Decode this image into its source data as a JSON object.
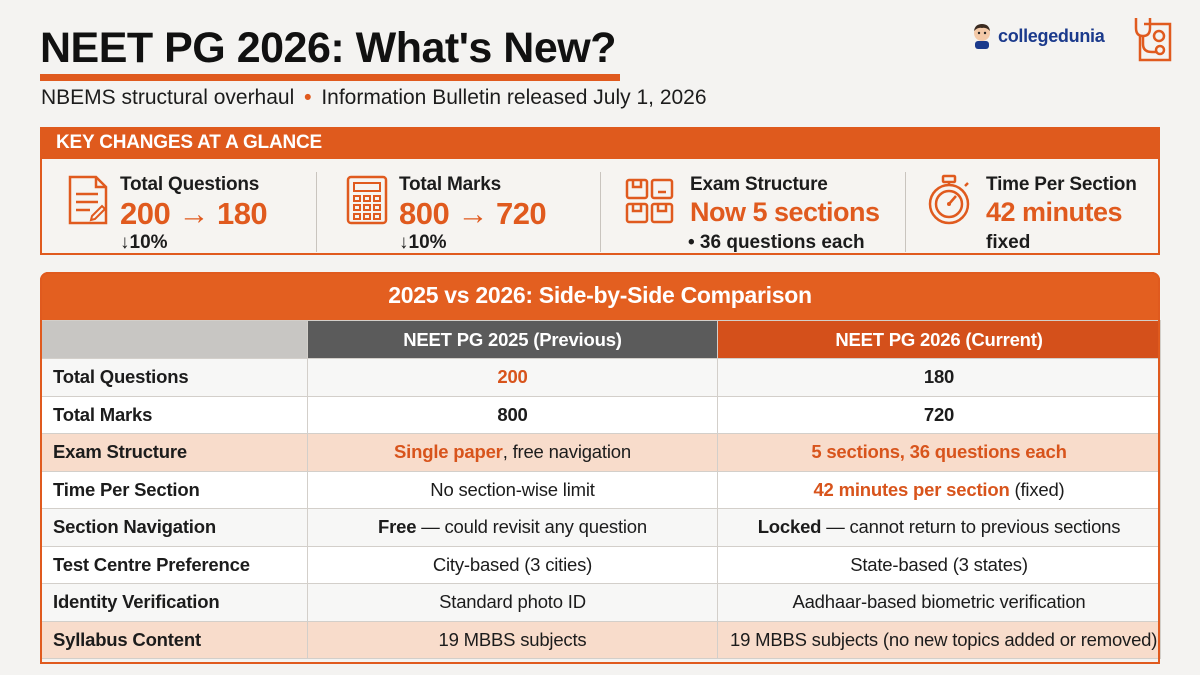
{
  "header": {
    "title": "NEET PG 2026: What's New?",
    "subtitle_part1": "NBEMS structural overhaul",
    "subtitle_sep": "•",
    "subtitle_part2": "Information Bulletin released July 1, 2026"
  },
  "logo": {
    "text": "collegedunia"
  },
  "key_changes": {
    "heading": "KEY CHANGES AT A GLANCE",
    "cards": [
      {
        "label": "Total Questions",
        "value": "200 → 180",
        "note": "↓10%",
        "icon": "document-icon"
      },
      {
        "label": "Total Marks",
        "value": "800 → 720",
        "note": "↓10%",
        "icon": "calculator-icon"
      },
      {
        "label": "Exam Structure",
        "value": "Now 5 sections",
        "note": "• 36 questions each",
        "icon": "sections-icon"
      },
      {
        "label": "Time Per Section",
        "value": "42 minutes",
        "note": "fixed",
        "icon": "stopwatch-icon"
      }
    ]
  },
  "comparison": {
    "heading": "2025 vs 2026: Side-by-Side Comparison",
    "col_prev": "NEET PG 2025 (Previous)",
    "col_curr": "NEET PG 2026 (Current)",
    "rows": [
      {
        "label": "Total Questions",
        "prev": "200",
        "curr": "180"
      },
      {
        "label": "Total Marks",
        "prev": "800",
        "curr": "720"
      },
      {
        "label": "Exam Structure",
        "prev_bold": "Single paper",
        "prev_rest": ", free navigation",
        "curr": "5 sections, 36 questions each"
      },
      {
        "label": "Time Per Section",
        "prev": "No section-wise limit",
        "curr_bold": "42 minutes per section",
        "curr_rest": " (fixed)"
      },
      {
        "label": "Section Navigation",
        "prev_bold": "Free",
        "prev_rest": " — could revisit any question",
        "curr_bold": "Locked",
        "curr_rest": " — cannot return to previous sections"
      },
      {
        "label": "Test Centre Preference",
        "prev": "City-based (3 cities)",
        "curr": "State-based (3 states)"
      },
      {
        "label": "Identity Verification",
        "prev": "Standard photo ID",
        "curr": "Aadhaar-based biometric verification"
      },
      {
        "label": "Syllabus Content",
        "prev": "19 MBBS subjects",
        "curr": "19 MBBS subjects (no new topics added or removed)"
      }
    ]
  },
  "colors": {
    "accent": "#e05a1e",
    "dark_header": "#5b5b5b",
    "highlight_row": "#f8dccb"
  }
}
